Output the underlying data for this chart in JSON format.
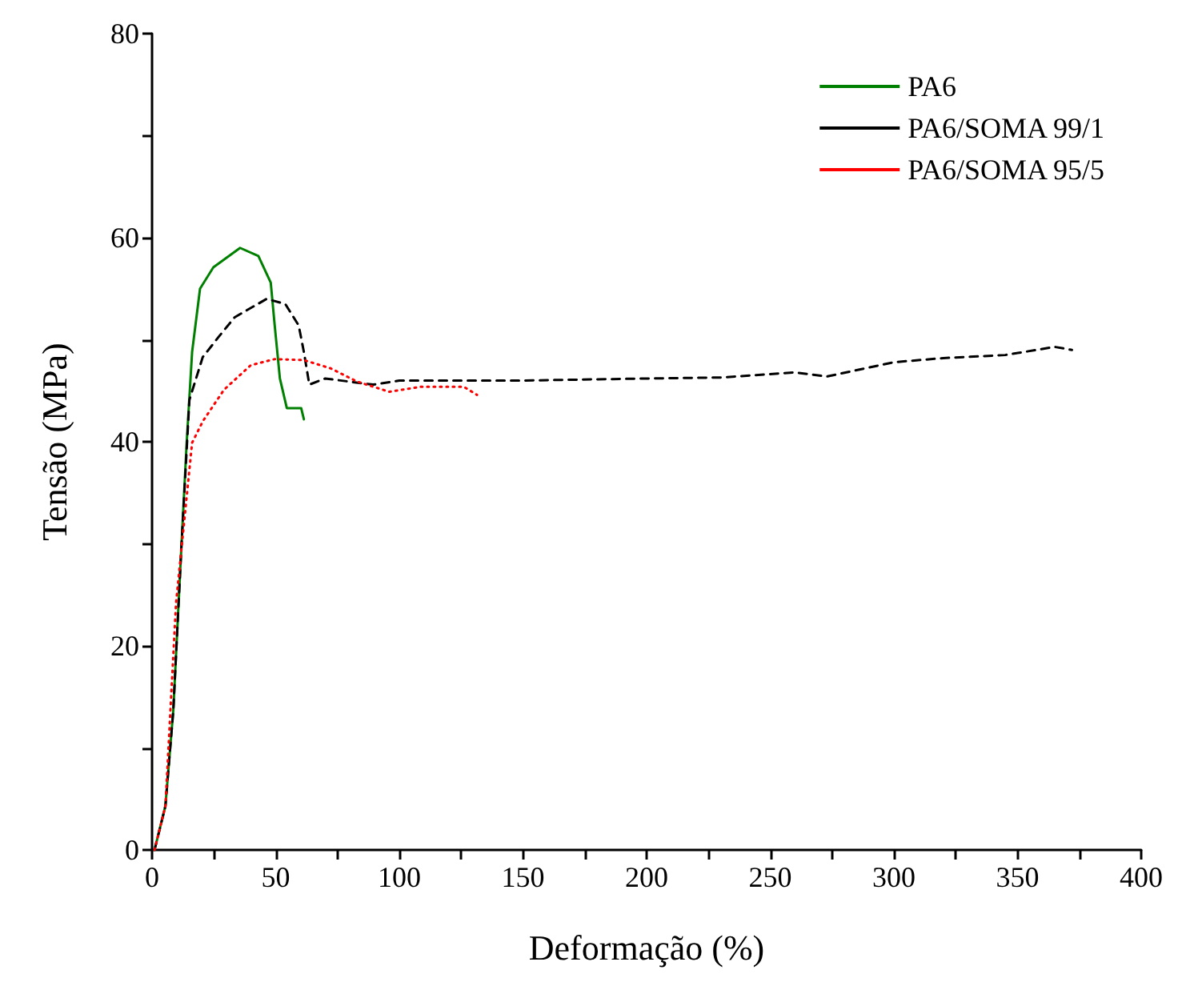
{
  "chart_data": {
    "type": "line",
    "xlabel": "Deformação (%)",
    "ylabel": "Tensão (MPa)",
    "xlim": [
      0,
      400
    ],
    "ylim": [
      0,
      80
    ],
    "xticks": [
      0,
      {
        "value": 25,
        "label": null
      },
      50,
      {
        "value": 75,
        "label": null
      },
      100,
      {
        "value": 125,
        "label": null
      },
      150,
      {
        "value": 175,
        "label": null
      },
      200,
      {
        "value": 225,
        "label": null
      },
      250,
      {
        "value": 275,
        "label": null
      },
      300,
      {
        "value": 325,
        "label": null
      },
      350,
      {
        "value": 375,
        "label": null
      },
      400
    ],
    "yticks": [
      0,
      {
        "value": 10,
        "label": null
      },
      20,
      {
        "value": 30,
        "label": null
      },
      40,
      {
        "value": 50,
        "label": null
      },
      60,
      {
        "value": 70,
        "label": null
      },
      80
    ],
    "grid": false,
    "legend": "top right",
    "marker": "none",
    "series": [
      {
        "name": "PA6",
        "color": "#008000",
        "line_style": "solid",
        "x": [
          1,
          5.4,
          8.6,
          11.8,
          14,
          16.2,
          19.4,
          24.8,
          35.6,
          43,
          48,
          49.6,
          51.7,
          54.5,
          60.3,
          61.4
        ],
        "values": [
          0,
          4.3,
          13.7,
          29.4,
          39.9,
          48.8,
          55,
          57.1,
          59,
          58.2,
          55.6,
          51.4,
          46.2,
          43.3,
          43.3,
          42.2
        ]
      },
      {
        "name": "PA6/SOMA 99/1",
        "color": "#000000",
        "line_style": "dashed",
        "x": [
          1,
          5.4,
          8.6,
          11.8,
          15.1,
          20.5,
          27,
          33.4,
          46.3,
          53.9,
          59.3,
          61.4,
          63.6,
          70,
          89.4,
          100,
          150,
          200,
          230,
          260,
          273,
          300,
          320,
          345,
          365,
          372
        ],
        "values": [
          0,
          4.3,
          13.7,
          29.4,
          44.1,
          48.3,
          50.3,
          52.2,
          54,
          53.5,
          51.4,
          48.8,
          45.6,
          46.2,
          45.6,
          46,
          46,
          46.2,
          46.3,
          46.8,
          46.4,
          47.8,
          48.2,
          48.5,
          49.3,
          49
        ]
      },
      {
        "name": "PA6/SOMA 95/5",
        "color": "#ff0000",
        "line_style": "dotted",
        "x": [
          1,
          5.4,
          9.7,
          14,
          16.2,
          20.5,
          29.1,
          39.9,
          49.6,
          61.4,
          72.2,
          82.9,
          95.9,
          108.8,
          126,
          131.4
        ],
        "values": [
          0,
          4.3,
          24.2,
          34.6,
          39.9,
          42,
          45.1,
          47.5,
          48.1,
          48,
          47.2,
          45.9,
          44.9,
          45.4,
          45.4,
          44.6
        ]
      }
    ]
  }
}
